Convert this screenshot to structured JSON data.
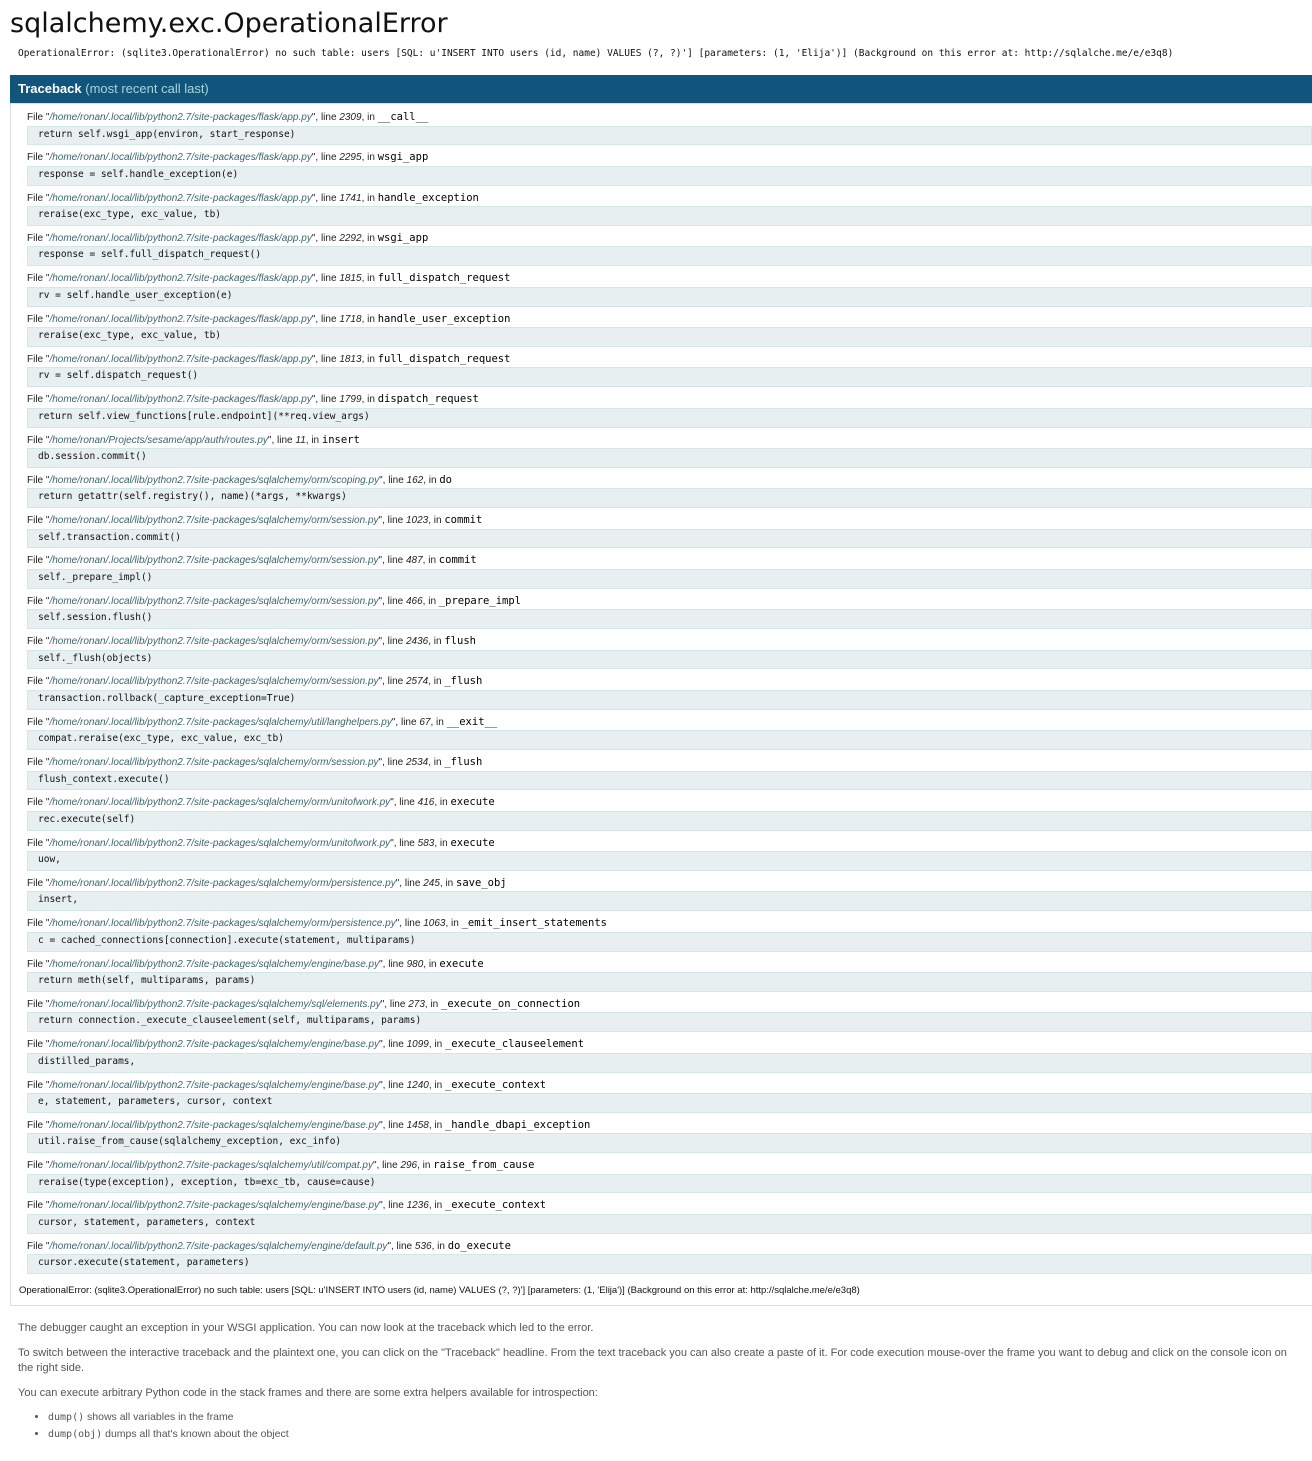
{
  "page": {
    "title": "sqlalchemy.exc.OperationalError",
    "detail": "OperationalError: (sqlite3.OperationalError) no such table: users [SQL: u'INSERT INTO users (id, name) VALUES (?, ?)'] [parameters: (1, 'Elija')] (Background on this error at: http://sqlalche.me/e/e3q8)"
  },
  "traceback": {
    "title": "Traceback",
    "subtitle": "(most recent call last)",
    "labels": {
      "file_prefix": "File \"",
      "file_suffix": "\", ",
      "line_word": "line ",
      "in_word": ", in "
    },
    "frames": [
      {
        "file": "/home/ronan/.local/lib/python2.7/site-packages/flask/app.py",
        "line": "2309",
        "function": "__call__",
        "code": "return self.wsgi_app(environ, start_response)"
      },
      {
        "file": "/home/ronan/.local/lib/python2.7/site-packages/flask/app.py",
        "line": "2295",
        "function": "wsgi_app",
        "code": "response = self.handle_exception(e)"
      },
      {
        "file": "/home/ronan/.local/lib/python2.7/site-packages/flask/app.py",
        "line": "1741",
        "function": "handle_exception",
        "code": "reraise(exc_type, exc_value, tb)"
      },
      {
        "file": "/home/ronan/.local/lib/python2.7/site-packages/flask/app.py",
        "line": "2292",
        "function": "wsgi_app",
        "code": "response = self.full_dispatch_request()"
      },
      {
        "file": "/home/ronan/.local/lib/python2.7/site-packages/flask/app.py",
        "line": "1815",
        "function": "full_dispatch_request",
        "code": "rv = self.handle_user_exception(e)"
      },
      {
        "file": "/home/ronan/.local/lib/python2.7/site-packages/flask/app.py",
        "line": "1718",
        "function": "handle_user_exception",
        "code": "reraise(exc_type, exc_value, tb)"
      },
      {
        "file": "/home/ronan/.local/lib/python2.7/site-packages/flask/app.py",
        "line": "1813",
        "function": "full_dispatch_request",
        "code": "rv = self.dispatch_request()"
      },
      {
        "file": "/home/ronan/.local/lib/python2.7/site-packages/flask/app.py",
        "line": "1799",
        "function": "dispatch_request",
        "code": "return self.view_functions[rule.endpoint](**req.view_args)"
      },
      {
        "file": "/home/ronan/Projects/sesame/app/auth/routes.py",
        "line": "11",
        "function": "insert",
        "code": "db.session.commit()"
      },
      {
        "file": "/home/ronan/.local/lib/python2.7/site-packages/sqlalchemy/orm/scoping.py",
        "line": "162",
        "function": "do",
        "code": "return getattr(self.registry(), name)(*args, **kwargs)"
      },
      {
        "file": "/home/ronan/.local/lib/python2.7/site-packages/sqlalchemy/orm/session.py",
        "line": "1023",
        "function": "commit",
        "code": "self.transaction.commit()"
      },
      {
        "file": "/home/ronan/.local/lib/python2.7/site-packages/sqlalchemy/orm/session.py",
        "line": "487",
        "function": "commit",
        "code": "self._prepare_impl()"
      },
      {
        "file": "/home/ronan/.local/lib/python2.7/site-packages/sqlalchemy/orm/session.py",
        "line": "466",
        "function": "_prepare_impl",
        "code": "self.session.flush()"
      },
      {
        "file": "/home/ronan/.local/lib/python2.7/site-packages/sqlalchemy/orm/session.py",
        "line": "2436",
        "function": "flush",
        "code": "self._flush(objects)"
      },
      {
        "file": "/home/ronan/.local/lib/python2.7/site-packages/sqlalchemy/orm/session.py",
        "line": "2574",
        "function": "_flush",
        "code": "transaction.rollback(_capture_exception=True)"
      },
      {
        "file": "/home/ronan/.local/lib/python2.7/site-packages/sqlalchemy/util/langhelpers.py",
        "line": "67",
        "function": "__exit__",
        "code": "compat.reraise(exc_type, exc_value, exc_tb)"
      },
      {
        "file": "/home/ronan/.local/lib/python2.7/site-packages/sqlalchemy/orm/session.py",
        "line": "2534",
        "function": "_flush",
        "code": "flush_context.execute()"
      },
      {
        "file": "/home/ronan/.local/lib/python2.7/site-packages/sqlalchemy/orm/unitofwork.py",
        "line": "416",
        "function": "execute",
        "code": "rec.execute(self)"
      },
      {
        "file": "/home/ronan/.local/lib/python2.7/site-packages/sqlalchemy/orm/unitofwork.py",
        "line": "583",
        "function": "execute",
        "code": "uow,"
      },
      {
        "file": "/home/ronan/.local/lib/python2.7/site-packages/sqlalchemy/orm/persistence.py",
        "line": "245",
        "function": "save_obj",
        "code": "insert,"
      },
      {
        "file": "/home/ronan/.local/lib/python2.7/site-packages/sqlalchemy/orm/persistence.py",
        "line": "1063",
        "function": "_emit_insert_statements",
        "code": "c = cached_connections[connection].execute(statement, multiparams)"
      },
      {
        "file": "/home/ronan/.local/lib/python2.7/site-packages/sqlalchemy/engine/base.py",
        "line": "980",
        "function": "execute",
        "code": "return meth(self, multiparams, params)"
      },
      {
        "file": "/home/ronan/.local/lib/python2.7/site-packages/sqlalchemy/sql/elements.py",
        "line": "273",
        "function": "_execute_on_connection",
        "code": "return connection._execute_clauseelement(self, multiparams, params)"
      },
      {
        "file": "/home/ronan/.local/lib/python2.7/site-packages/sqlalchemy/engine/base.py",
        "line": "1099",
        "function": "_execute_clauseelement",
        "code": "distilled_params,"
      },
      {
        "file": "/home/ronan/.local/lib/python2.7/site-packages/sqlalchemy/engine/base.py",
        "line": "1240",
        "function": "_execute_context",
        "code": "e, statement, parameters, cursor, context"
      },
      {
        "file": "/home/ronan/.local/lib/python2.7/site-packages/sqlalchemy/engine/base.py",
        "line": "1458",
        "function": "_handle_dbapi_exception",
        "code": "util.raise_from_cause(sqlalchemy_exception, exc_info)"
      },
      {
        "file": "/home/ronan/.local/lib/python2.7/site-packages/sqlalchemy/util/compat.py",
        "line": "296",
        "function": "raise_from_cause",
        "code": "reraise(type(exception), exception, tb=exc_tb, cause=cause)"
      },
      {
        "file": "/home/ronan/.local/lib/python2.7/site-packages/sqlalchemy/engine/base.py",
        "line": "1236",
        "function": "_execute_context",
        "code": "cursor, statement, parameters, context"
      },
      {
        "file": "/home/ronan/.local/lib/python2.7/site-packages/sqlalchemy/engine/default.py",
        "line": "536",
        "function": "do_execute",
        "code": "cursor.execute(statement, parameters)"
      }
    ],
    "exception": "OperationalError: (sqlite3.OperationalError) no such table: users [SQL: u'INSERT INTO users (id, name) VALUES (?, ?)'] [parameters: (1, 'Elija')] (Background on this error at: http://sqlalche.me/e/e3q8)"
  },
  "explanation": {
    "paragraphs": [
      "The debugger caught an exception in your WSGI application. You can now look at the traceback which led to the error.",
      "To switch between the interactive traceback and the plaintext one, you can click on the \"Traceback\" headline. From the text traceback you can also create a paste of it. For code execution mouse-over the frame you want to debug and click on the console icon on the right side.",
      "You can execute arbitrary Python code in the stack frames and there are some extra helpers available for introspection:"
    ],
    "helpers": [
      {
        "code": "dump()",
        "text": " shows all variables in the frame"
      },
      {
        "code": "dump(obj)",
        "text": " dumps all that's known about the object"
      }
    ]
  },
  "colors": {
    "header_bg": "#11557C",
    "header_em": "#A5D6D9",
    "source_bg": "#E8EFF0",
    "source_border": "#D3E7E9",
    "filename": "#3B666B",
    "muted_text": "#555555"
  }
}
